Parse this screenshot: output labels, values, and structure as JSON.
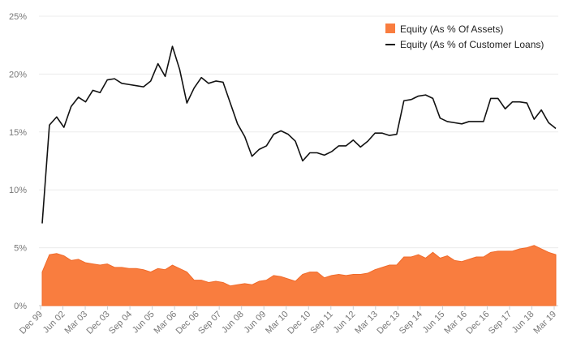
{
  "chart_data": {
    "type": "line",
    "y_axis": {
      "ticks": [
        0,
        5,
        10,
        15,
        20,
        25
      ],
      "tick_labels": [
        "0%",
        "5%",
        "10%",
        "15%",
        "20%",
        "25%"
      ],
      "range": [
        0,
        25
      ]
    },
    "x_axis": {
      "tick_labels": [
        "Dec 99",
        "Jun 02",
        "Mar 03",
        "Dec 03",
        "Sep 04",
        "Jun 05",
        "Mar 06",
        "Dec 06",
        "Sep 07",
        "Jun 08",
        "Jun 09",
        "Mar 10",
        "Dec 10",
        "Sep 11",
        "Jun 12",
        "Mar 13",
        "Dec 13",
        "Sep 14",
        "Jun 15",
        "Mar 16",
        "Dec 16",
        "Sep 17",
        "Jun 18",
        "Mar 19"
      ]
    },
    "grid": true,
    "legend_position": "top-right",
    "series": [
      {
        "name": "Equity (As % Of Assets)",
        "kind": "area",
        "color": "#f97d3f",
        "values": [
          2.9,
          4.4,
          4.5,
          4.3,
          3.9,
          4.0,
          3.7,
          3.6,
          3.5,
          3.6,
          3.3,
          3.3,
          3.2,
          3.2,
          3.1,
          2.9,
          3.2,
          3.1,
          3.5,
          3.2,
          2.9,
          2.2,
          2.2,
          2.0,
          2.1,
          2.0,
          1.7,
          1.8,
          1.9,
          1.8,
          2.1,
          2.2,
          2.6,
          2.5,
          2.3,
          2.1,
          2.7,
          2.9,
          2.9,
          2.4,
          2.6,
          2.7,
          2.6,
          2.7,
          2.7,
          2.8,
          3.1,
          3.3,
          3.5,
          3.5,
          4.2,
          4.2,
          4.4,
          4.1,
          4.6,
          4.1,
          4.3,
          3.9,
          3.8,
          4.0,
          4.2,
          4.2,
          4.6,
          4.7,
          4.7,
          4.7,
          4.9,
          5.0,
          5.2,
          4.9,
          4.6,
          4.4
        ]
      },
      {
        "name": "Equity (As % of Customer Loans)",
        "kind": "line",
        "color": "#111111",
        "values": [
          7.1,
          15.6,
          16.3,
          15.4,
          17.2,
          18.0,
          17.6,
          18.6,
          18.4,
          19.5,
          19.6,
          19.2,
          19.1,
          19.0,
          18.9,
          19.4,
          20.9,
          19.8,
          22.4,
          20.4,
          17.5,
          18.8,
          19.7,
          19.2,
          19.4,
          19.3,
          17.5,
          15.7,
          14.6,
          12.9,
          13.5,
          13.8,
          14.8,
          15.1,
          14.8,
          14.2,
          12.5,
          13.2,
          13.2,
          13.0,
          13.3,
          13.8,
          13.8,
          14.3,
          13.7,
          14.2,
          14.9,
          14.9,
          14.7,
          14.8,
          17.7,
          17.8,
          18.1,
          18.2,
          17.9,
          16.2,
          15.9,
          15.8,
          15.7,
          15.9,
          15.9,
          15.9,
          17.9,
          17.9,
          17.0,
          17.6,
          17.6,
          17.5,
          16.1,
          16.9,
          15.8,
          15.3
        ]
      }
    ]
  }
}
